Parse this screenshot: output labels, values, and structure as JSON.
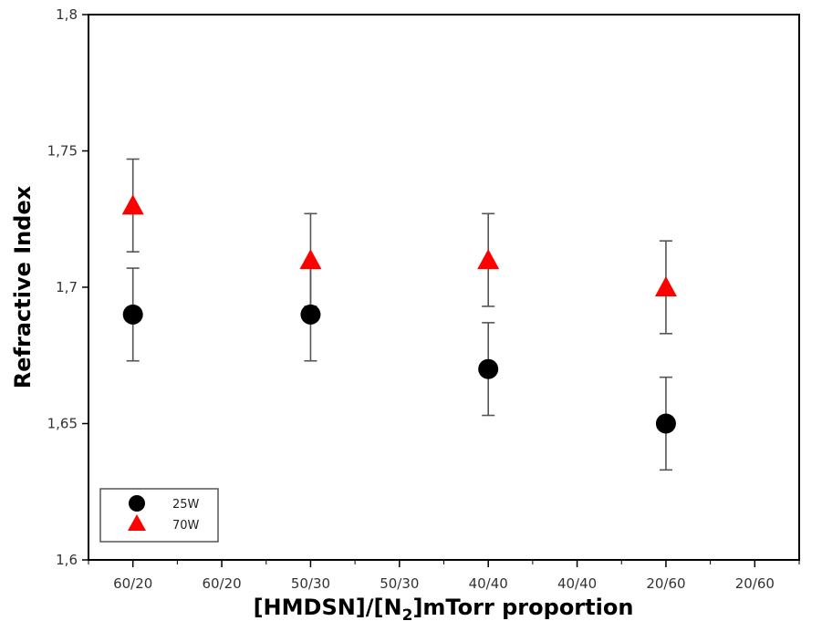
{
  "chart_data": {
    "type": "scatter",
    "title": "",
    "xlabel_parts": {
      "pre": "[HMDSN]/[N",
      "sub": "2",
      "post": "]mTorr proportion"
    },
    "ylabel": "Refractive Index",
    "x_tick_labels": [
      "60/20",
      "60/20",
      "50/30",
      "50/30",
      "40/40",
      "40/40",
      "20/60",
      "20/60"
    ],
    "y_ticks": [
      1.6,
      1.65,
      1.7,
      1.75,
      1.8
    ],
    "y_tick_labels": [
      "1,6",
      "1,65",
      "1,7",
      "1,75",
      "1,8"
    ],
    "ylim": [
      1.6,
      1.8
    ],
    "x_range": [
      0.5,
      8.5
    ],
    "grid": false,
    "legend_position": "bottom-left",
    "series": [
      {
        "name": "25W",
        "marker": "circle",
        "color": "#000000",
        "x": [
          1,
          3,
          5,
          7
        ],
        "y": [
          1.69,
          1.69,
          1.67,
          1.65
        ],
        "error": [
          0.017,
          0.017,
          0.017,
          0.017
        ]
      },
      {
        "name": "70W",
        "marker": "triangle",
        "color": "#ff0000",
        "x": [
          1,
          3,
          5,
          7
        ],
        "y": [
          1.73,
          1.71,
          1.71,
          1.7
        ],
        "error": [
          0.017,
          0.017,
          0.017,
          0.017
        ]
      }
    ]
  }
}
